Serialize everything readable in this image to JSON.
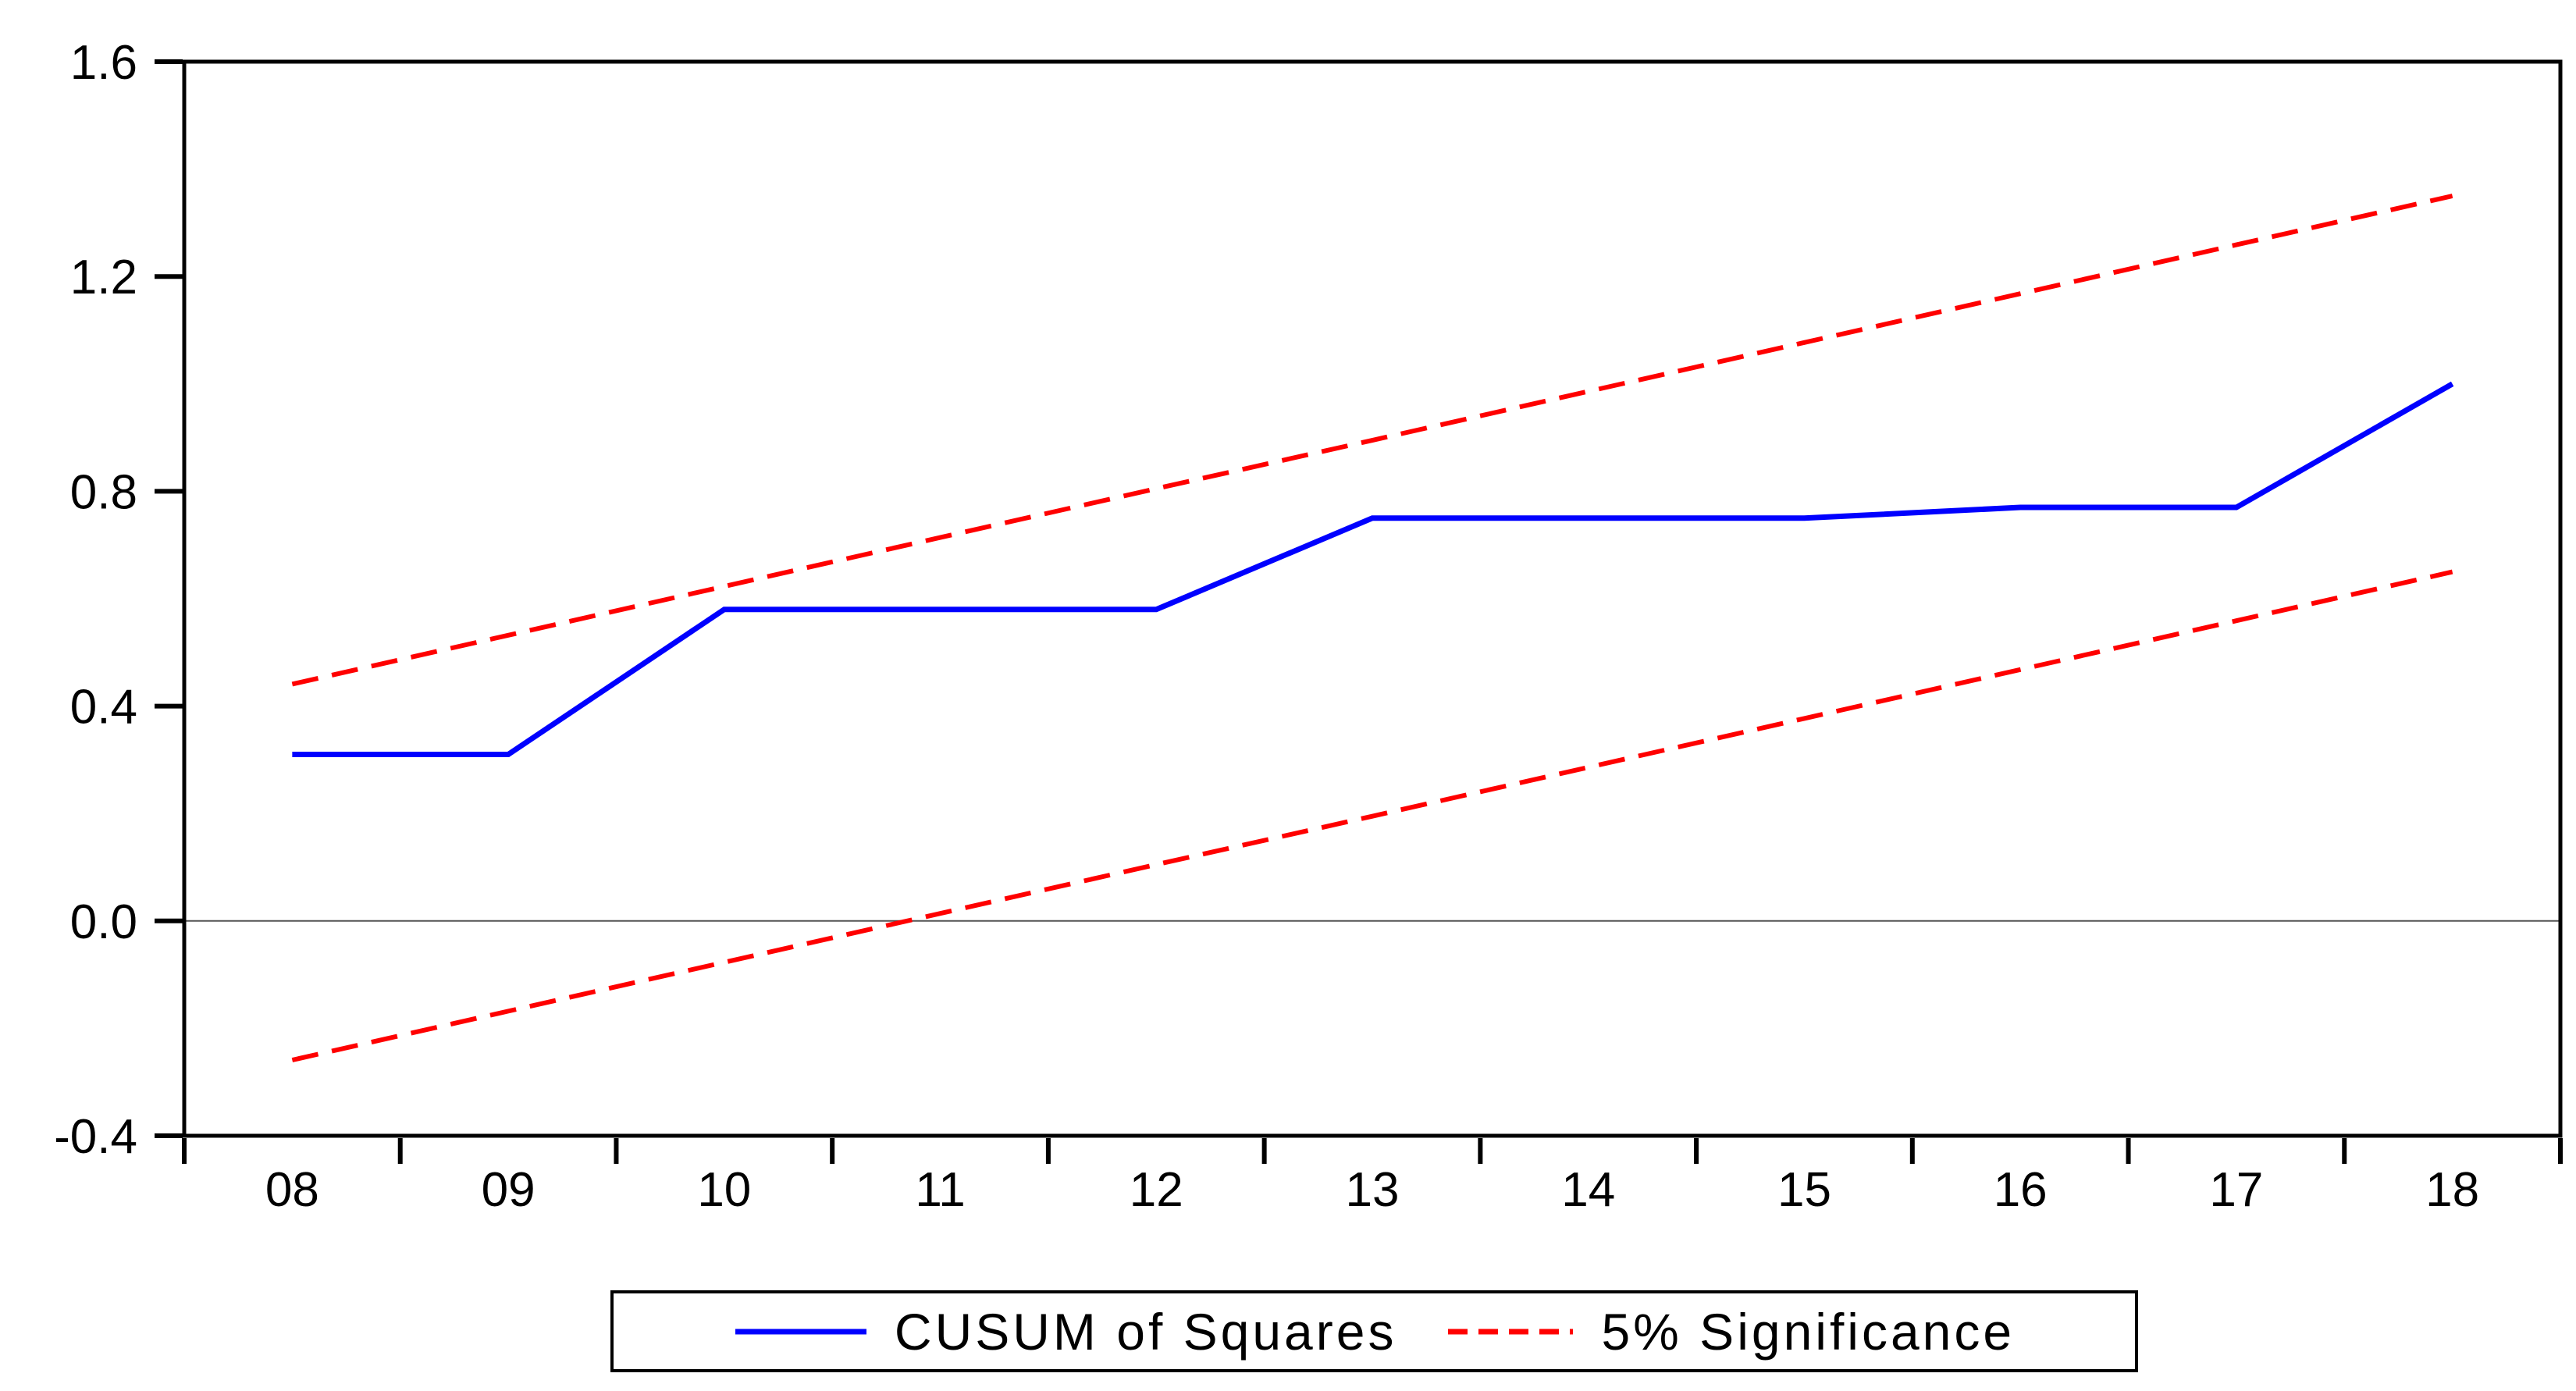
{
  "chart_data": {
    "type": "line",
    "title": "",
    "categories": [
      "08",
      "09",
      "10",
      "11",
      "12",
      "13",
      "14",
      "15",
      "16",
      "17",
      "18"
    ],
    "ylim": [
      -0.4,
      1.6
    ],
    "y_ticks": [
      {
        "v": 1.6,
        "label": "1.6"
      },
      {
        "v": 1.2,
        "label": "1.2"
      },
      {
        "v": 0.8,
        "label": "0.8"
      },
      {
        "v": 0.4,
        "label": "0.4"
      },
      {
        "v": 0.0,
        "label": "0.0"
      },
      {
        "v": -0.4,
        "label": "-0.4"
      }
    ],
    "grid": "off",
    "zero_line": true,
    "zero_line_color": "#555555",
    "axis_color": "#000000",
    "series": [
      {
        "name": "CUSUM of Squares",
        "style": "solid",
        "color": "#0000ff",
        "width": 7,
        "values": [
          0.31,
          0.31,
          0.58,
          0.58,
          0.58,
          0.75,
          0.75,
          0.75,
          0.77,
          0.77,
          1.0
        ]
      },
      {
        "name": "5% Significance upper bound",
        "style": "dashed",
        "color": "#ff0000",
        "width": 6,
        "values": [
          0.441,
          0.532,
          0.623,
          0.714,
          0.805,
          0.895,
          0.986,
          1.077,
          1.168,
          1.259,
          1.35
        ]
      },
      {
        "name": "5% Significance lower bound",
        "style": "dashed",
        "color": "#ff0000",
        "width": 6,
        "values": [
          -0.259,
          -0.168,
          -0.077,
          0.014,
          0.105,
          0.195,
          0.286,
          0.377,
          0.468,
          0.559,
          0.65
        ]
      }
    ],
    "legend": {
      "position": "bottom",
      "items": [
        {
          "label": "CUSUM of Squares",
          "color": "#0000ff",
          "style": "solid"
        },
        {
          "label": "5% Significance",
          "color": "#ff0000",
          "style": "dashed"
        }
      ]
    }
  }
}
